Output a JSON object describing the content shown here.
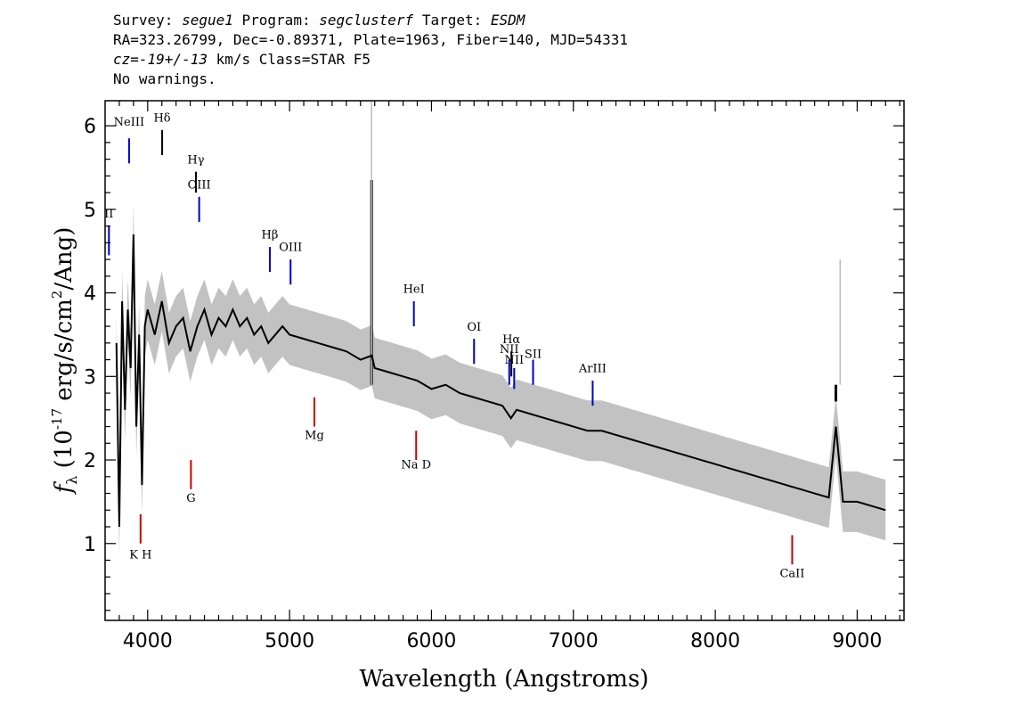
{
  "header": {
    "survey_label": "Survey:",
    "survey": "segue1",
    "program_label": "Program:",
    "program": "segclusterf",
    "target_label": "Target:",
    "target": "ESDM",
    "coords": "RA=323.26799, Dec=-0.89371, Plate=1963, Fiber=140, MJD=54331",
    "cz_value": "cz=-19+/-13",
    "cz_rest": " km/s Class=STAR F5",
    "warnings": "No warnings."
  },
  "colors": {
    "flux": "#000000",
    "error_band": "#bbbbbb",
    "emission_line": "#0000cc",
    "absorption_line": "#cc0000",
    "sky_line": "#000000"
  },
  "chart_data": {
    "type": "line",
    "title": "",
    "xlabel": "Wavelength (Angstroms)",
    "ylabel": "f_λ (10^-17 erg/s/cm^2/Ang)",
    "xlim": [
      3700,
      9330
    ],
    "ylim": [
      0.08,
      6.3
    ],
    "xticks": [
      4000,
      5000,
      6000,
      7000,
      8000,
      9000
    ],
    "yticks": [
      1,
      2,
      3,
      4,
      5,
      6
    ],
    "grid": false,
    "series": [
      {
        "role": "flux",
        "x": [
          3780,
          3800,
          3820,
          3840,
          3860,
          3880,
          3900,
          3920,
          3940,
          3960,
          3980,
          4000,
          4050,
          4100,
          4150,
          4200,
          4250,
          4300,
          4350,
          4400,
          4450,
          4500,
          4550,
          4600,
          4650,
          4700,
          4750,
          4800,
          4850,
          4900,
          4950,
          5000,
          5100,
          5200,
          5300,
          5400,
          5500,
          5580,
          5600,
          5700,
          5800,
          5900,
          6000,
          6100,
          6200,
          6300,
          6400,
          6500,
          6560,
          6600,
          6700,
          6800,
          6900,
          7000,
          7100,
          7200,
          7300,
          7400,
          7500,
          7600,
          7700,
          7800,
          7900,
          8000,
          8100,
          8200,
          8300,
          8400,
          8500,
          8600,
          8700,
          8800,
          8850,
          8900,
          9000,
          9100,
          9200
        ],
        "y": [
          3.4,
          1.2,
          3.9,
          2.6,
          3.8,
          3.1,
          4.7,
          2.4,
          3.5,
          1.7,
          3.6,
          3.8,
          3.5,
          3.9,
          3.4,
          3.6,
          3.7,
          3.3,
          3.6,
          3.8,
          3.5,
          3.7,
          3.6,
          3.8,
          3.6,
          3.7,
          3.5,
          3.6,
          3.4,
          3.5,
          3.6,
          3.5,
          3.45,
          3.4,
          3.35,
          3.3,
          3.2,
          3.25,
          3.1,
          3.05,
          3.0,
          2.95,
          2.85,
          2.9,
          2.8,
          2.75,
          2.7,
          2.65,
          2.5,
          2.6,
          2.55,
          2.5,
          2.45,
          2.4,
          2.35,
          2.35,
          2.3,
          2.25,
          2.2,
          2.15,
          2.1,
          2.05,
          2.0,
          1.95,
          1.9,
          1.85,
          1.8,
          1.75,
          1.7,
          1.65,
          1.6,
          1.55,
          2.4,
          1.5,
          1.5,
          1.45,
          1.4
        ]
      }
    ],
    "spikes": [
      {
        "x": 5578,
        "y": 5.35,
        "color": "#000000"
      },
      {
        "x": 8850,
        "y": 2.7,
        "color": "#000000"
      },
      {
        "x": 5578,
        "y": 6.3,
        "color": "#bbbbbb"
      },
      {
        "x": 8880,
        "y": 4.4,
        "color": "#bbbbbb"
      }
    ],
    "annotations": [
      {
        "label": "NeIII",
        "x": 3869,
        "y_top": 5.85,
        "y_bottom": 5.55,
        "color": "#0000cc",
        "label_y": 6.0
      },
      {
        "label": "Hδ",
        "x": 4102,
        "y_top": 5.95,
        "y_bottom": 5.65,
        "color": "#000000",
        "label_y": 6.05
      },
      {
        "label": "Hγ",
        "x": 4340,
        "y_top": 5.45,
        "y_bottom": 5.2,
        "color": "#000000",
        "label_y": 5.55
      },
      {
        "label": "OIII",
        "x": 4363,
        "y_top": 5.15,
        "y_bottom": 4.85,
        "color": "#0000cc",
        "label_y": 5.25
      },
      {
        "label": "II",
        "x": 3727,
        "y_top": 4.8,
        "y_bottom": 4.45,
        "color": "#0000cc",
        "label_y": 4.9
      },
      {
        "label": "Hβ",
        "x": 4861,
        "y_top": 4.55,
        "y_bottom": 4.25,
        "color": "#0000cc",
        "label_y": 4.65
      },
      {
        "label": "OIII",
        "x": 5007,
        "y_top": 4.4,
        "y_bottom": 4.1,
        "color": "#0000cc",
        "label_y": 4.5
      },
      {
        "label": "HeI",
        "x": 5876,
        "y_top": 3.9,
        "y_bottom": 3.6,
        "color": "#0000cc",
        "label_y": 4.0
      },
      {
        "label": "OI",
        "x": 6300,
        "y_top": 3.45,
        "y_bottom": 3.15,
        "color": "#0000cc",
        "label_y": 3.55
      },
      {
        "label": "NII",
        "x": 6548,
        "y_top": 3.2,
        "y_bottom": 2.9,
        "color": "#0000cc",
        "label_y": 3.28
      },
      {
        "label": "Hα",
        "x": 6563,
        "y_top": 3.3,
        "y_bottom": 3.0,
        "color": "#000000",
        "label_y": 3.4
      },
      {
        "label": "NII",
        "x": 6583,
        "y_top": 3.1,
        "y_bottom": 2.85,
        "color": "#0000cc",
        "label_y": 3.15
      },
      {
        "label": "SII",
        "x": 6716,
        "y_top": 3.2,
        "y_bottom": 2.9,
        "color": "#0000cc",
        "label_y": 3.22
      },
      {
        "label": "ArIII",
        "x": 7136,
        "y_top": 2.95,
        "y_bottom": 2.65,
        "color": "#0000cc",
        "label_y": 3.05
      },
      {
        "label": "Mg",
        "x": 5175,
        "y_top": 2.75,
        "y_bottom": 2.4,
        "color": "#cc0000",
        "label_y": 2.25
      },
      {
        "label": "G",
        "x": 4305,
        "y_top": 2.0,
        "y_bottom": 1.65,
        "color": "#cc0000",
        "label_y": 1.5
      },
      {
        "label": "Na D",
        "x": 5892,
        "y_top": 2.35,
        "y_bottom": 2.0,
        "color": "#cc0000",
        "label_y": 1.9
      },
      {
        "label": "K H",
        "x": 3950,
        "y_top": 1.35,
        "y_bottom": 1.0,
        "color": "#cc0000",
        "label_y": 0.82
      },
      {
        "label": "CaII",
        "x": 8542,
        "y_top": 1.1,
        "y_bottom": 0.75,
        "color": "#cc0000",
        "label_y": 0.6
      }
    ]
  }
}
